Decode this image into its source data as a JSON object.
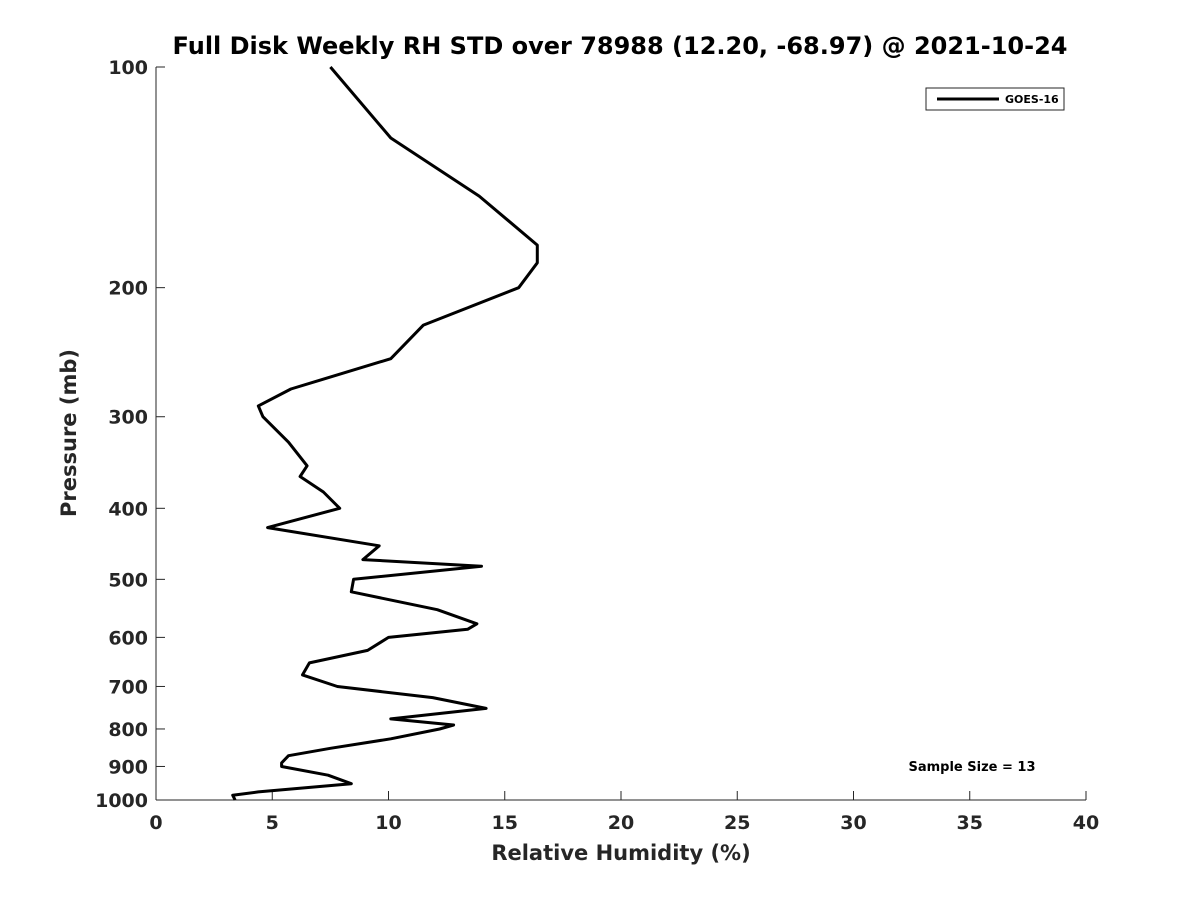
{
  "chart_data": {
    "type": "line",
    "title": "Full Disk Weekly RH STD over 78988 (12.20, -68.97) @ 2021-10-24",
    "xlabel": "Relative Humidity (%)",
    "ylabel": "Pressure (mb)",
    "xlim": [
      0,
      40
    ],
    "ylim": [
      100,
      1000
    ],
    "y_scale": "log",
    "y_inverted": true,
    "xticks": [
      0,
      5,
      10,
      15,
      20,
      25,
      30,
      35,
      40
    ],
    "yticks": [
      100,
      200,
      300,
      400,
      500,
      600,
      700,
      800,
      900,
      1000
    ],
    "grid": false,
    "legend": {
      "position": "top-right",
      "entries": [
        "GOES-16"
      ]
    },
    "annotation": "Sample Size = 13",
    "series": [
      {
        "name": "GOES-16",
        "color": "#000000",
        "x": [
          7.5,
          10.1,
          13.9,
          16.4,
          16.4,
          15.6,
          11.5,
          10.1,
          5.8,
          4.4,
          4.6,
          5.7,
          6.5,
          6.2,
          7.2,
          7.9,
          4.8,
          9.6,
          8.9,
          14.0,
          8.5,
          8.4,
          12.1,
          13.8,
          13.4,
          10.0,
          9.1,
          6.6,
          6.3,
          7.8,
          11.9,
          14.2,
          10.1,
          12.8,
          12.2,
          10.1,
          7.5,
          5.7,
          5.4,
          5.4,
          7.4,
          8.4,
          4.4,
          3.3,
          3.4
        ],
        "y": [
          100,
          125,
          150,
          175,
          185,
          200,
          225,
          250,
          275,
          290,
          300,
          325,
          350,
          362,
          380,
          400,
          425,
          450,
          470,
          480,
          500,
          520,
          550,
          575,
          585,
          600,
          625,
          650,
          675,
          700,
          725,
          750,
          775,
          790,
          800,
          825,
          850,
          870,
          890,
          900,
          925,
          950,
          975,
          985,
          1000
        ]
      }
    ]
  }
}
